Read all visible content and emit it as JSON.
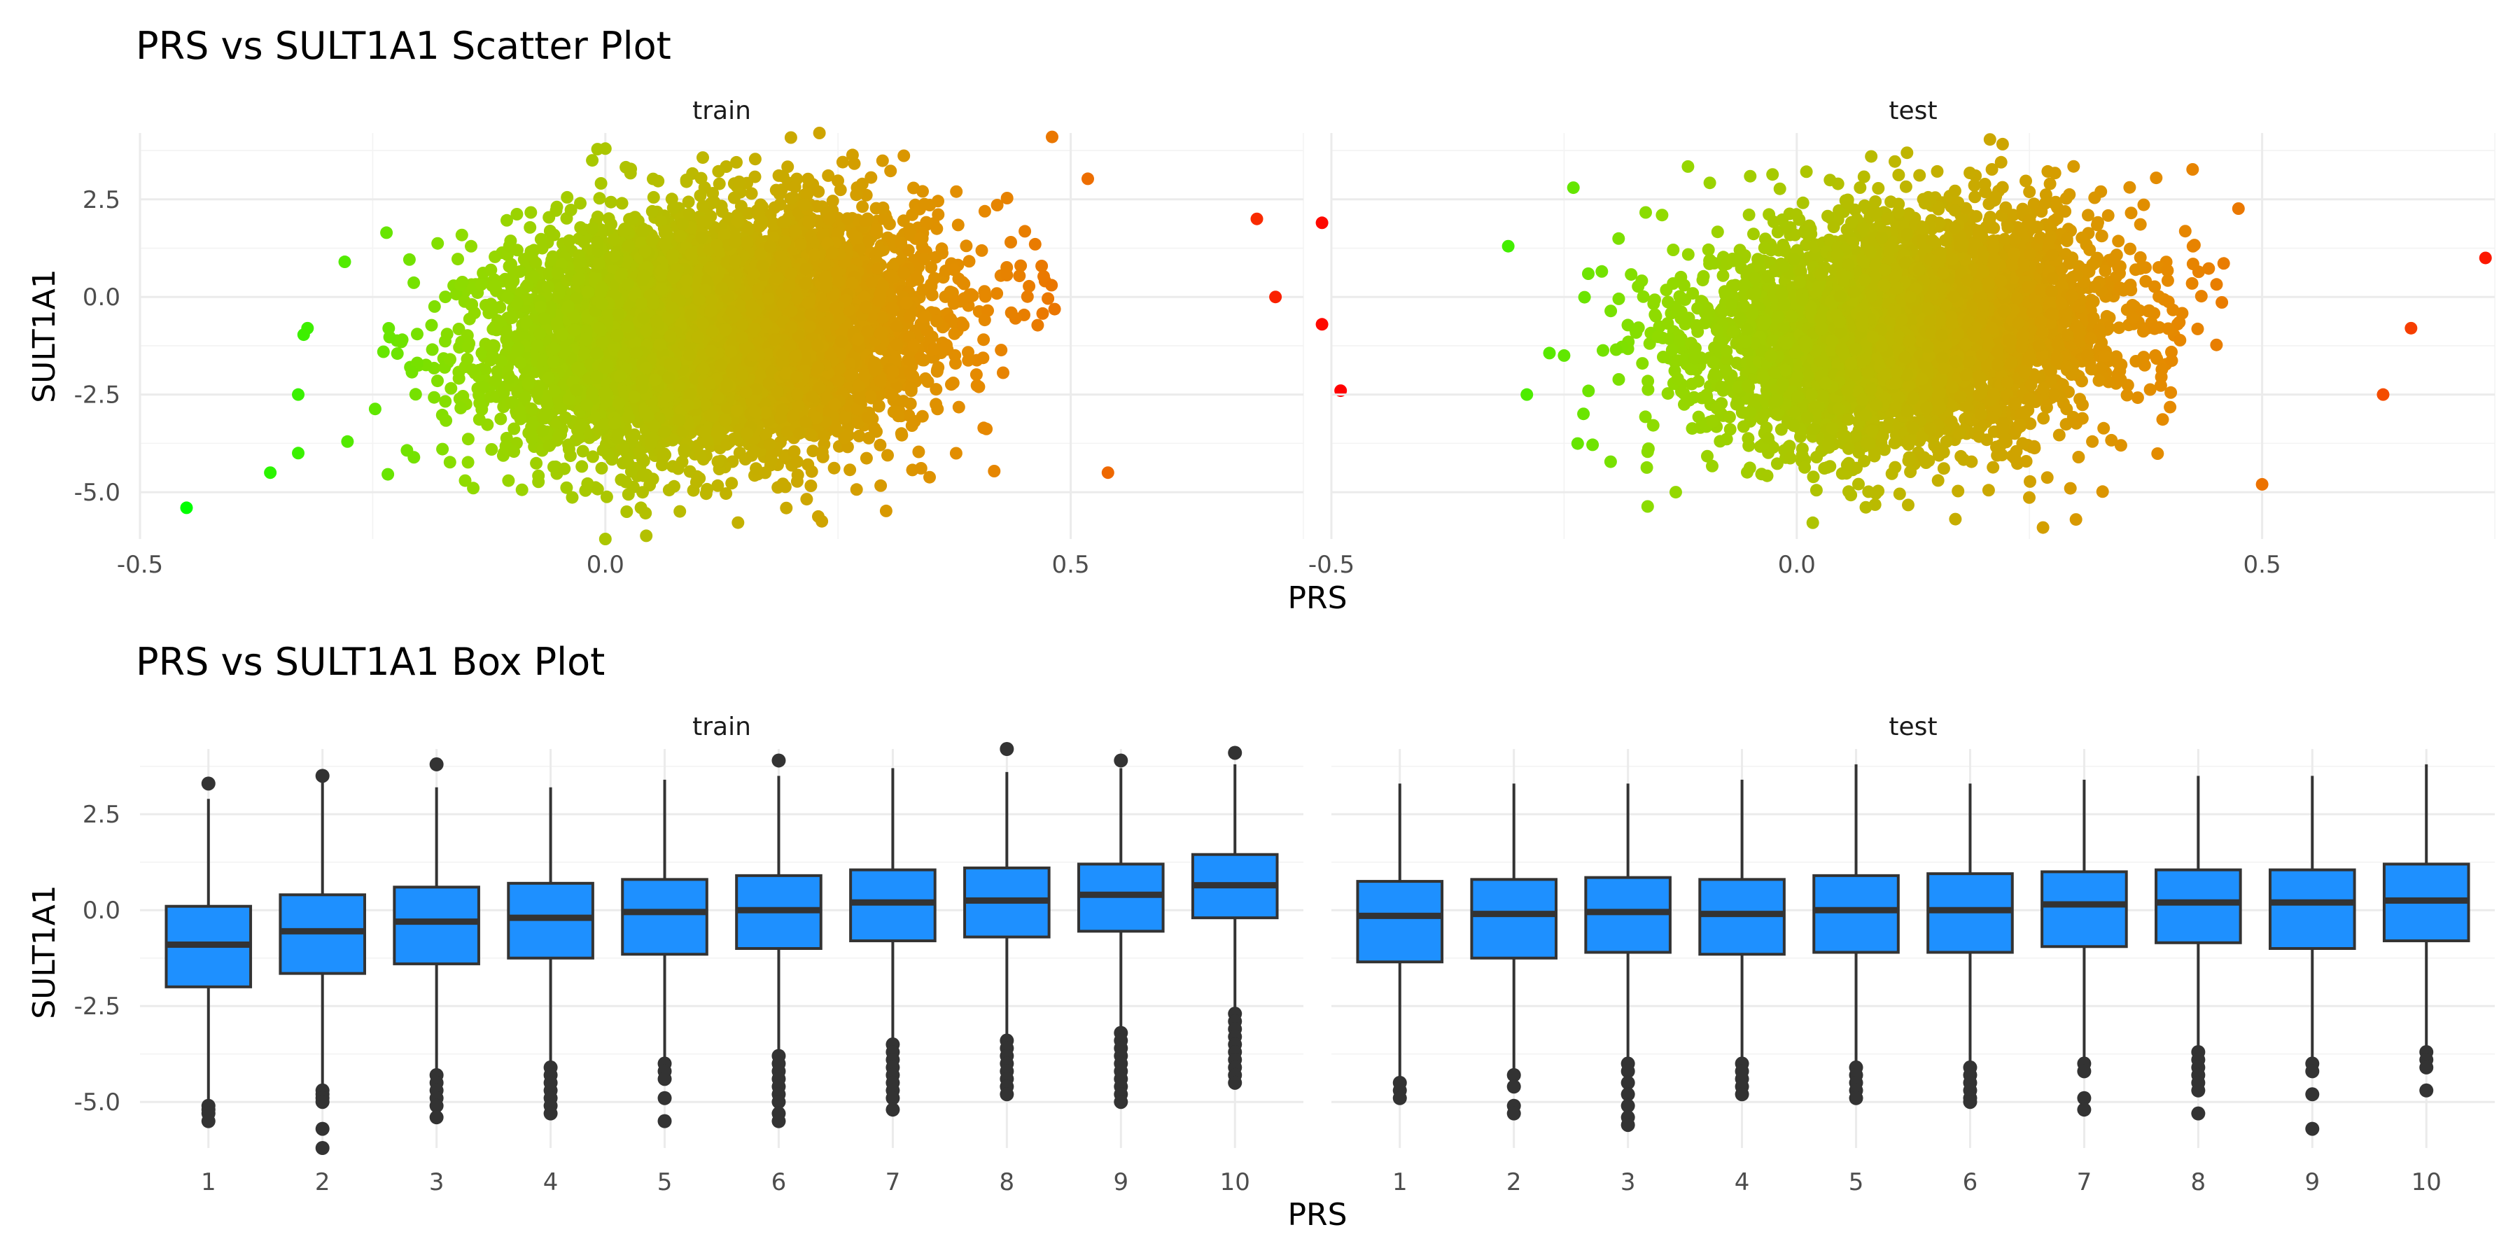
{
  "colors": {
    "box_fill": "#1E90FF",
    "box_line": "#333333",
    "outlier": "#333333",
    "gradient_low": "#00FF00",
    "gradient_mid": "#90DB00",
    "gradient_high": "#FF0000"
  },
  "chart_data": [
    {
      "type": "scatter",
      "title": "PRS vs SULT1A1 Scatter Plot",
      "xlabel": "PRS",
      "ylabel": "SULT1A1",
      "xlim": [
        -0.5,
        0.75
      ],
      "ylim": [
        -6.2,
        4.2
      ],
      "x_ticks": [
        -0.5,
        0.0,
        0.5
      ],
      "x_tick_labels": [
        "-0.5",
        "0.0",
        "0.5"
      ],
      "y_ticks": [
        -5.0,
        -2.5,
        0.0,
        2.5
      ],
      "y_tick_labels": [
        "-5.0",
        "-2.5",
        "0.0",
        "2.5"
      ],
      "grid": true,
      "legend": "none",
      "color_encoding": "points colored by PRS value, green (low) to red (high)",
      "facets": [
        {
          "name": "train",
          "center": {
            "x": 0.12,
            "y": -0.85
          },
          "spread": {
            "x": 0.11,
            "y": 1.45
          },
          "slope": 2.0,
          "extreme_points": [
            {
              "x": -0.45,
              "y": -5.4
            },
            {
              "x": -0.36,
              "y": -4.5
            },
            {
              "x": -0.33,
              "y": -4.0
            },
            {
              "x": -0.33,
              "y": -2.5
            },
            {
              "x": -0.32,
              "y": -0.8
            },
            {
              "x": -0.28,
              "y": 0.9
            },
            {
              "x": 0.0,
              "y": -6.2
            },
            {
              "x": 0.0,
              "y": 3.8
            },
            {
              "x": 0.23,
              "y": 4.2
            },
            {
              "x": 0.48,
              "y": 4.1
            },
            {
              "x": 0.54,
              "y": -4.5
            },
            {
              "x": 0.7,
              "y": 2.0
            },
            {
              "x": 0.77,
              "y": 1.9
            },
            {
              "x": 0.72,
              "y": 0.0
            },
            {
              "x": 0.77,
              "y": -0.7
            },
            {
              "x": 0.79,
              "y": -2.4
            }
          ]
        },
        {
          "name": "test",
          "center": {
            "x": 0.12,
            "y": -0.85
          },
          "spread": {
            "x": 0.11,
            "y": 1.45
          },
          "slope": 2.0,
          "extreme_points": [
            {
              "x": -0.31,
              "y": 1.3
            },
            {
              "x": -0.29,
              "y": -2.5
            },
            {
              "x": -0.25,
              "y": -1.5
            },
            {
              "x": -0.24,
              "y": 2.8
            },
            {
              "x": -0.13,
              "y": -5.0
            },
            {
              "x": 0.08,
              "y": 3.6
            },
            {
              "x": 0.3,
              "y": -5.7
            },
            {
              "x": 0.5,
              "y": -4.8
            },
            {
              "x": 0.63,
              "y": -2.5
            },
            {
              "x": 0.74,
              "y": 1.0
            },
            {
              "x": 0.66,
              "y": -0.8
            }
          ]
        }
      ]
    },
    {
      "type": "box",
      "title": "PRS vs SULT1A1 Box Plot",
      "xlabel": "PRS",
      "ylabel": "SULT1A1",
      "categories": [
        "1",
        "2",
        "3",
        "4",
        "5",
        "6",
        "7",
        "8",
        "9",
        "10"
      ],
      "ylim": [
        -6.2,
        4.2
      ],
      "y_ticks": [
        -5.0,
        -2.5,
        0.0,
        2.5
      ],
      "y_tick_labels": [
        "-5.0",
        "-2.5",
        "0.0",
        "2.5"
      ],
      "grid": true,
      "legend": "none",
      "facets": [
        {
          "name": "train",
          "boxes": [
            {
              "q1": -2.0,
              "median": -0.9,
              "q3": 0.1,
              "whisker_low": -5.0,
              "whisker_high": 2.9,
              "outliers": [
                3.3,
                -5.1,
                -5.2,
                -5.3,
                -5.5
              ]
            },
            {
              "q1": -1.65,
              "median": -0.55,
              "q3": 0.4,
              "whisker_low": -4.7,
              "whisker_high": 3.4,
              "outliers": [
                3.5,
                -4.7,
                -4.8,
                -4.9,
                -5.0,
                -5.7,
                -6.2
              ]
            },
            {
              "q1": -1.4,
              "median": -0.3,
              "q3": 0.6,
              "whisker_low": -4.2,
              "whisker_high": 3.2,
              "outliers": [
                3.8,
                -4.3,
                -4.5,
                -4.7,
                -4.9,
                -5.1,
                -5.4
              ]
            },
            {
              "q1": -1.25,
              "median": -0.2,
              "q3": 0.7,
              "whisker_low": -4.0,
              "whisker_high": 3.2,
              "outliers": [
                -4.1,
                -4.3,
                -4.5,
                -4.7,
                -4.9,
                -5.1,
                -5.3
              ]
            },
            {
              "q1": -1.15,
              "median": -0.05,
              "q3": 0.8,
              "whisker_low": -3.9,
              "whisker_high": 3.4,
              "outliers": [
                -4.0,
                -4.2,
                -4.4,
                -4.9,
                -5.5
              ]
            },
            {
              "q1": -1.0,
              "median": 0.0,
              "q3": 0.9,
              "whisker_low": -3.7,
              "whisker_high": 3.5,
              "outliers": [
                3.9,
                -3.8,
                -4.0,
                -4.2,
                -4.4,
                -4.6,
                -4.8,
                -5.0,
                -5.3,
                -5.5
              ]
            },
            {
              "q1": -0.8,
              "median": 0.2,
              "q3": 1.05,
              "whisker_low": -3.4,
              "whisker_high": 3.7,
              "outliers": [
                -3.5,
                -3.7,
                -3.9,
                -4.1,
                -4.3,
                -4.5,
                -4.7,
                -4.9,
                -5.2
              ]
            },
            {
              "q1": -0.7,
              "median": 0.25,
              "q3": 1.1,
              "whisker_low": -3.3,
              "whisker_high": 3.6,
              "outliers": [
                4.2,
                -3.4,
                -3.6,
                -3.8,
                -4.0,
                -4.2,
                -4.4,
                -4.6,
                -4.8
              ]
            },
            {
              "q1": -0.55,
              "median": 0.4,
              "q3": 1.2,
              "whisker_low": -3.1,
              "whisker_high": 3.7,
              "outliers": [
                3.9,
                -3.2,
                -3.4,
                -3.6,
                -3.8,
                -4.0,
                -4.2,
                -4.4,
                -4.6,
                -4.8,
                -5.0
              ]
            },
            {
              "q1": -0.2,
              "median": 0.65,
              "q3": 1.45,
              "whisker_low": -2.6,
              "whisker_high": 3.8,
              "outliers": [
                4.1,
                -2.7,
                -2.9,
                -3.1,
                -3.3,
                -3.5,
                -3.7,
                -3.9,
                -4.1,
                -4.3,
                -4.5
              ]
            }
          ]
        },
        {
          "name": "test",
          "boxes": [
            {
              "q1": -1.35,
              "median": -0.15,
              "q3": 0.75,
              "whisker_low": -4.4,
              "whisker_high": 3.3,
              "outliers": [
                -4.5,
                -4.7,
                -4.9
              ]
            },
            {
              "q1": -1.25,
              "median": -0.1,
              "q3": 0.8,
              "whisker_low": -4.2,
              "whisker_high": 3.3,
              "outliers": [
                -4.3,
                -4.6,
                -5.1,
                -5.3
              ]
            },
            {
              "q1": -1.1,
              "median": -0.05,
              "q3": 0.85,
              "whisker_low": -3.9,
              "whisker_high": 3.3,
              "outliers": [
                -4.0,
                -4.2,
                -4.5,
                -4.8,
                -5.1,
                -5.4,
                -5.6
              ]
            },
            {
              "q1": -1.15,
              "median": -0.1,
              "q3": 0.8,
              "whisker_low": -3.9,
              "whisker_high": 3.4,
              "outliers": [
                -4.0,
                -4.2,
                -4.4,
                -4.6,
                -4.8
              ]
            },
            {
              "q1": -1.1,
              "median": 0.0,
              "q3": 0.9,
              "whisker_low": -4.0,
              "whisker_high": 3.8,
              "outliers": [
                -4.1,
                -4.3,
                -4.5,
                -4.7,
                -4.9
              ]
            },
            {
              "q1": -1.1,
              "median": 0.0,
              "q3": 0.95,
              "whisker_low": -4.0,
              "whisker_high": 3.3,
              "outliers": [
                -4.1,
                -4.3,
                -4.5,
                -4.7,
                -4.9,
                -5.0
              ]
            },
            {
              "q1": -0.95,
              "median": 0.15,
              "q3": 1.0,
              "whisker_low": -3.9,
              "whisker_high": 3.4,
              "outliers": [
                -4.0,
                -4.2,
                -4.9,
                -5.2
              ]
            },
            {
              "q1": -0.85,
              "median": 0.2,
              "q3": 1.05,
              "whisker_low": -3.6,
              "whisker_high": 3.5,
              "outliers": [
                -3.7,
                -3.9,
                -4.1,
                -4.3,
                -4.5,
                -4.7,
                -5.3
              ]
            },
            {
              "q1": -1.0,
              "median": 0.2,
              "q3": 1.05,
              "whisker_low": -3.9,
              "whisker_high": 3.5,
              "outliers": [
                -4.0,
                -4.2,
                -4.8,
                -5.7
              ]
            },
            {
              "q1": -0.8,
              "median": 0.25,
              "q3": 1.2,
              "whisker_low": -3.6,
              "whisker_high": 3.8,
              "outliers": [
                -3.7,
                -3.9,
                -4.1,
                -4.7
              ]
            }
          ]
        }
      ]
    }
  ]
}
